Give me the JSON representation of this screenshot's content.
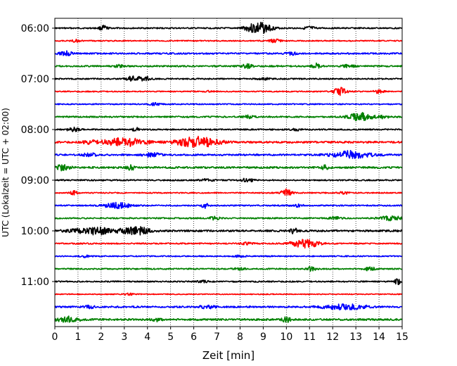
{
  "chart_data": {
    "type": "line",
    "title": "",
    "xlabel": "Zeit  [min]",
    "ylabel": "UTC (Lokalzeit = UTC + 02:00)",
    "xlim": [
      0,
      15
    ],
    "x_ticks": [
      "0",
      "1",
      "2",
      "3",
      "4",
      "5",
      "6",
      "7",
      "8",
      "9",
      "10",
      "11",
      "12",
      "13",
      "14",
      "15"
    ],
    "y_ticks": [
      {
        "label": "06:00",
        "trace": 0
      },
      {
        "label": "07:00",
        "trace": 4
      },
      {
        "label": "08:00",
        "trace": 8
      },
      {
        "label": "09:00",
        "trace": 12
      },
      {
        "label": "10:00",
        "trace": 16
      },
      {
        "label": "11:00",
        "trace": 20
      }
    ],
    "grid": "vertical dotted",
    "trace_colors": [
      "#000000",
      "#ff0000",
      "#0000ff",
      "#008000"
    ],
    "traces": [
      {
        "start": "06:00",
        "color": "#000000",
        "noise": 0.14,
        "events": [
          [
            2.1,
            0.5,
            0.3
          ],
          [
            8.8,
            1.3,
            0.9
          ],
          [
            11.0,
            0.35,
            0.4
          ]
        ]
      },
      {
        "start": "06:15",
        "color": "#ff0000",
        "noise": 0.12,
        "events": [
          [
            9.5,
            0.35,
            0.4
          ],
          [
            0.9,
            0.25,
            0.3
          ]
        ]
      },
      {
        "start": "06:30",
        "color": "#0000ff",
        "noise": 0.16,
        "events": [
          [
            0.5,
            0.45,
            0.5
          ],
          [
            10.2,
            0.3,
            0.4
          ]
        ]
      },
      {
        "start": "06:45",
        "color": "#008000",
        "noise": 0.16,
        "events": [
          [
            8.3,
            0.45,
            0.4
          ],
          [
            11.3,
            0.7,
            0.3
          ],
          [
            12.7,
            0.45,
            0.4
          ],
          [
            2.8,
            0.25,
            0.4
          ]
        ]
      },
      {
        "start": "07:00",
        "color": "#000000",
        "noise": 0.14,
        "events": [
          [
            3.4,
            0.6,
            0.5
          ],
          [
            3.9,
            0.55,
            0.4
          ],
          [
            9.0,
            0.25,
            0.4
          ]
        ]
      },
      {
        "start": "07:15",
        "color": "#ff0000",
        "noise": 0.12,
        "events": [
          [
            12.3,
            0.85,
            0.5
          ],
          [
            14.0,
            0.35,
            0.4
          ],
          [
            6.7,
            0.2,
            0.3
          ]
        ]
      },
      {
        "start": "07:30",
        "color": "#0000ff",
        "noise": 0.12,
        "events": [
          [
            4.3,
            0.25,
            0.4
          ]
        ]
      },
      {
        "start": "07:45",
        "color": "#008000",
        "noise": 0.16,
        "events": [
          [
            13.2,
            0.85,
            0.9
          ],
          [
            8.4,
            0.3,
            0.4
          ],
          [
            14.2,
            0.3,
            0.4
          ]
        ]
      },
      {
        "start": "08:00",
        "color": "#000000",
        "noise": 0.14,
        "events": [
          [
            0.8,
            0.4,
            0.5
          ],
          [
            3.5,
            0.4,
            0.3
          ],
          [
            10.4,
            0.2,
            0.4
          ]
        ]
      },
      {
        "start": "08:15",
        "color": "#ff0000",
        "noise": 0.2,
        "events": [
          [
            3.0,
            0.85,
            1.6
          ],
          [
            6.2,
            1.1,
            1.6
          ],
          [
            1.5,
            0.3,
            0.5
          ]
        ]
      },
      {
        "start": "08:30",
        "color": "#0000ff",
        "noise": 0.18,
        "events": [
          [
            4.2,
            0.55,
            0.6
          ],
          [
            12.8,
            0.8,
            1.5
          ],
          [
            1.5,
            0.35,
            0.5
          ]
        ]
      },
      {
        "start": "08:45",
        "color": "#008000",
        "noise": 0.2,
        "events": [
          [
            0.3,
            0.55,
            0.6
          ],
          [
            3.3,
            0.55,
            0.3
          ],
          [
            11.7,
            0.5,
            0.3
          ]
        ]
      },
      {
        "start": "09:00",
        "color": "#000000",
        "noise": 0.14,
        "events": [
          [
            8.3,
            0.35,
            0.5
          ],
          [
            6.6,
            0.3,
            0.5
          ]
        ]
      },
      {
        "start": "09:15",
        "color": "#ff0000",
        "noise": 0.12,
        "events": [
          [
            0.8,
            0.45,
            0.3
          ],
          [
            10.0,
            0.75,
            0.4
          ],
          [
            12.5,
            0.25,
            0.4
          ]
        ]
      },
      {
        "start": "09:30",
        "color": "#0000ff",
        "noise": 0.14,
        "events": [
          [
            2.7,
            0.6,
            1.0
          ],
          [
            6.5,
            0.5,
            0.3
          ],
          [
            10.5,
            0.25,
            0.4
          ]
        ]
      },
      {
        "start": "09:45",
        "color": "#008000",
        "noise": 0.14,
        "events": [
          [
            14.5,
            0.5,
            0.8
          ],
          [
            6.9,
            0.3,
            0.4
          ],
          [
            12.1,
            0.25,
            0.5
          ]
        ]
      },
      {
        "start": "10:00",
        "color": "#000000",
        "noise": 0.2,
        "events": [
          [
            1.7,
            0.75,
            1.6
          ],
          [
            3.5,
            0.85,
            1.0
          ],
          [
            10.3,
            0.6,
            0.3
          ]
        ]
      },
      {
        "start": "10:15",
        "color": "#ff0000",
        "noise": 0.14,
        "events": [
          [
            10.8,
            0.95,
            1.0
          ],
          [
            8.3,
            0.25,
            0.5
          ]
        ]
      },
      {
        "start": "10:30",
        "color": "#0000ff",
        "noise": 0.12,
        "events": [
          [
            1.3,
            0.2,
            0.4
          ],
          [
            8.0,
            0.2,
            0.4
          ]
        ]
      },
      {
        "start": "10:45",
        "color": "#008000",
        "noise": 0.14,
        "events": [
          [
            11.1,
            0.55,
            0.3
          ],
          [
            13.6,
            0.4,
            0.4
          ],
          [
            8.0,
            0.25,
            0.4
          ]
        ]
      },
      {
        "start": "11:00",
        "color": "#000000",
        "noise": 0.14,
        "events": [
          [
            14.8,
            0.65,
            0.2
          ],
          [
            6.4,
            0.2,
            0.4
          ]
        ]
      },
      {
        "start": "11:15",
        "color": "#ff0000",
        "noise": 0.1,
        "events": [
          [
            3.2,
            0.2,
            0.4
          ]
        ]
      },
      {
        "start": "11:30",
        "color": "#0000ff",
        "noise": 0.18,
        "events": [
          [
            12.5,
            0.55,
            1.7
          ],
          [
            6.6,
            0.3,
            0.6
          ],
          [
            1.5,
            0.3,
            0.4
          ]
        ]
      },
      {
        "start": "11:45",
        "color": "#008000",
        "noise": 0.2,
        "events": [
          [
            0.6,
            0.6,
            0.8
          ],
          [
            10.0,
            0.55,
            0.3
          ],
          [
            4.4,
            0.3,
            0.4
          ]
        ]
      }
    ]
  }
}
